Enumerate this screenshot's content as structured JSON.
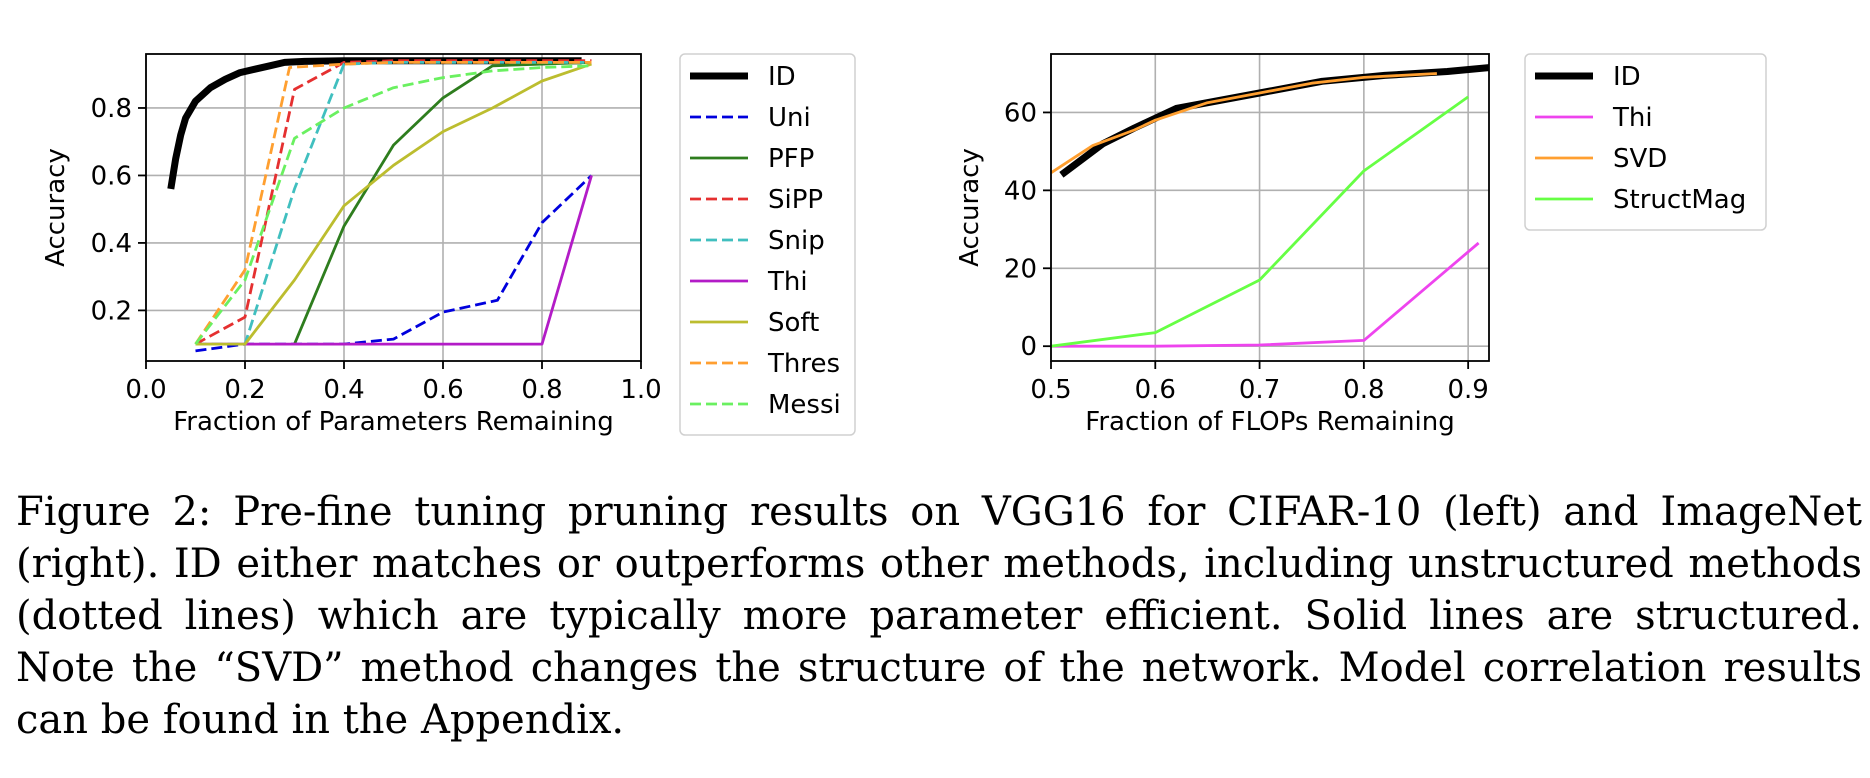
{
  "caption": "Figure 2: Pre-fine tuning pruning results on VGG16 for CIFAR-10 (left) and ImageNet (right). ID either matches or outperforms other methods, including unstructured methods (dotted lines) which are typically more parameter efficient. Solid lines are structured. Note the “SVD” method changes the structure of the network. Model correlation results can be found in the Appendix.",
  "chart_data": [
    {
      "type": "line",
      "xlabel": "Fraction of Parameters Remaining",
      "ylabel": "Accuracy",
      "xlim": [
        0.0,
        1.0
      ],
      "ylim": [
        0.05,
        0.96
      ],
      "xticks": [
        0.0,
        0.2,
        0.4,
        0.6,
        0.8,
        1.0
      ],
      "xtick_labels": [
        "0.0",
        "0.2",
        "0.4",
        "0.6",
        "0.8",
        "1.0"
      ],
      "yticks": [
        0.2,
        0.4,
        0.6,
        0.8
      ],
      "ytick_labels": [
        "0.2",
        "0.4",
        "0.6",
        "0.8"
      ],
      "grid": true,
      "legend_position": "outside-right",
      "series": [
        {
          "name": "ID",
          "color": "#000000",
          "style": "solid",
          "width": "thick",
          "points": [
            [
              0.05,
              0.56
            ],
            [
              0.06,
              0.65
            ],
            [
              0.07,
              0.72
            ],
            [
              0.08,
              0.77
            ],
            [
              0.1,
              0.82
            ],
            [
              0.13,
              0.86
            ],
            [
              0.16,
              0.885
            ],
            [
              0.19,
              0.905
            ],
            [
              0.22,
              0.915
            ],
            [
              0.25,
              0.925
            ],
            [
              0.28,
              0.935
            ],
            [
              0.32,
              0.938
            ],
            [
              0.4,
              0.94
            ],
            [
              0.5,
              0.94
            ],
            [
              0.6,
              0.94
            ],
            [
              0.7,
              0.94
            ],
            [
              0.8,
              0.94
            ],
            [
              0.88,
              0.94
            ]
          ]
        },
        {
          "name": "Uni",
          "color": "#0000dd",
          "style": "dashed",
          "points": [
            [
              0.1,
              0.08
            ],
            [
              0.2,
              0.1
            ],
            [
              0.3,
              0.1
            ],
            [
              0.4,
              0.1
            ],
            [
              0.5,
              0.115
            ],
            [
              0.6,
              0.195
            ],
            [
              0.71,
              0.23
            ],
            [
              0.8,
              0.46
            ],
            [
              0.9,
              0.6
            ]
          ]
        },
        {
          "name": "PFP",
          "color": "#2e7d1e",
          "style": "solid",
          "points": [
            [
              0.3,
              0.1
            ],
            [
              0.4,
              0.45
            ],
            [
              0.5,
              0.69
            ],
            [
              0.6,
              0.83
            ],
            [
              0.7,
              0.925
            ],
            [
              0.8,
              0.93
            ],
            [
              0.9,
              0.935
            ]
          ]
        },
        {
          "name": "SiPP",
          "color": "#e53030",
          "style": "dashed",
          "points": [
            [
              0.1,
              0.1
            ],
            [
              0.2,
              0.18
            ],
            [
              0.3,
              0.855
            ],
            [
              0.4,
              0.935
            ],
            [
              0.5,
              0.94
            ],
            [
              0.6,
              0.94
            ],
            [
              0.7,
              0.94
            ],
            [
              0.8,
              0.94
            ],
            [
              0.9,
              0.94
            ]
          ]
        },
        {
          "name": "Snip",
          "color": "#40bfbf",
          "style": "dashed",
          "points": [
            [
              0.1,
              0.1
            ],
            [
              0.2,
              0.1
            ],
            [
              0.3,
              0.56
            ],
            [
              0.4,
              0.93
            ],
            [
              0.5,
              0.935
            ],
            [
              0.6,
              0.935
            ],
            [
              0.7,
              0.935
            ],
            [
              0.8,
              0.935
            ],
            [
              0.9,
              0.935
            ]
          ]
        },
        {
          "name": "Thi",
          "color": "#b31cc7",
          "style": "solid",
          "points": [
            [
              0.1,
              0.1
            ],
            [
              0.2,
              0.1
            ],
            [
              0.3,
              0.1
            ],
            [
              0.4,
              0.1
            ],
            [
              0.5,
              0.1
            ],
            [
              0.6,
              0.1
            ],
            [
              0.7,
              0.1
            ],
            [
              0.8,
              0.1
            ],
            [
              0.9,
              0.6
            ]
          ]
        },
        {
          "name": "Soft",
          "color": "#bcbd2f",
          "style": "solid",
          "points": [
            [
              0.1,
              0.1
            ],
            [
              0.2,
              0.1
            ],
            [
              0.3,
              0.29
            ],
            [
              0.4,
              0.51
            ],
            [
              0.5,
              0.63
            ],
            [
              0.6,
              0.73
            ],
            [
              0.7,
              0.8
            ],
            [
              0.8,
              0.88
            ],
            [
              0.9,
              0.93
            ]
          ]
        },
        {
          "name": "Thres",
          "color": "#ff9f30",
          "style": "dashed",
          "points": [
            [
              0.1,
              0.1
            ],
            [
              0.2,
              0.32
            ],
            [
              0.29,
              0.92
            ],
            [
              0.4,
              0.93
            ],
            [
              0.5,
              0.935
            ],
            [
              0.6,
              0.935
            ],
            [
              0.7,
              0.935
            ],
            [
              0.8,
              0.935
            ],
            [
              0.9,
              0.935
            ]
          ]
        },
        {
          "name": "Messi",
          "color": "#6af060",
          "style": "dashed",
          "points": [
            [
              0.1,
              0.1
            ],
            [
              0.2,
              0.29
            ],
            [
              0.3,
              0.71
            ],
            [
              0.4,
              0.8
            ],
            [
              0.5,
              0.86
            ],
            [
              0.6,
              0.89
            ],
            [
              0.7,
              0.91
            ],
            [
              0.8,
              0.92
            ],
            [
              0.9,
              0.925
            ]
          ]
        }
      ]
    },
    {
      "type": "line",
      "xlabel": "Fraction of FLOPs Remaining",
      "ylabel": "Accuracy",
      "xlim": [
        0.5,
        0.92
      ],
      "ylim": [
        -3.8,
        75.0
      ],
      "xticks": [
        0.5,
        0.6,
        0.7,
        0.8,
        0.9
      ],
      "xtick_labels": [
        "0.5",
        "0.6",
        "0.7",
        "0.8",
        "0.9"
      ],
      "yticks": [
        0,
        20,
        40,
        60
      ],
      "ytick_labels": [
        "0",
        "20",
        "40",
        "60"
      ],
      "grid": true,
      "legend_position": "outside-right",
      "series": [
        {
          "name": "ID",
          "color": "#000000",
          "style": "solid",
          "width": "thick",
          "points": [
            [
              0.51,
              44.0
            ],
            [
              0.55,
              52.0
            ],
            [
              0.58,
              56.0
            ],
            [
              0.62,
              61.0
            ],
            [
              0.7,
              65.0
            ],
            [
              0.76,
              68.0
            ],
            [
              0.82,
              69.5
            ],
            [
              0.88,
              70.5
            ],
            [
              0.92,
              71.5
            ]
          ]
        },
        {
          "name": "Thi",
          "color": "#ee44ee",
          "style": "solid",
          "points": [
            [
              0.5,
              0.0
            ],
            [
              0.6,
              0.0
            ],
            [
              0.7,
              0.3
            ],
            [
              0.8,
              1.5
            ],
            [
              0.91,
              26.5
            ]
          ]
        },
        {
          "name": "SVD",
          "color": "#ff9f30",
          "style": "solid",
          "points": [
            [
              0.5,
              44.5
            ],
            [
              0.54,
              51.5
            ],
            [
              0.58,
              55.5
            ],
            [
              0.6,
              58.0
            ],
            [
              0.65,
              62.5
            ],
            [
              0.7,
              65.0
            ],
            [
              0.75,
              67.5
            ],
            [
              0.8,
              69.0
            ],
            [
              0.87,
              70.0
            ]
          ]
        },
        {
          "name": "StructMag",
          "color": "#66ff44",
          "style": "solid",
          "points": [
            [
              0.5,
              0.0
            ],
            [
              0.6,
              3.5
            ],
            [
              0.7,
              17.0
            ],
            [
              0.8,
              45.0
            ],
            [
              0.9,
              64.0
            ]
          ]
        }
      ]
    }
  ]
}
